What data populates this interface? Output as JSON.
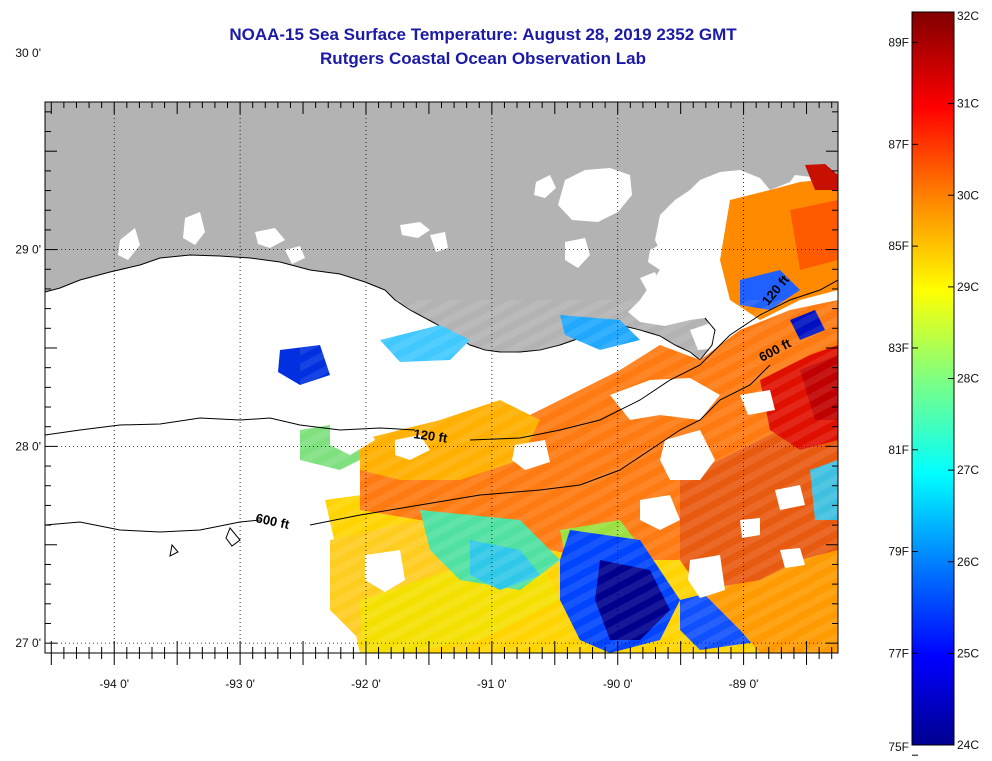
{
  "title": "NOAA-15 Sea Surface Temperature:  August 28, 2019 2352 GMT",
  "subtitle": "Rutgers Coastal Ocean Observation Lab",
  "colors": {
    "land": "#b3b3b3",
    "cloud": "#ffffff",
    "title": "#1a1aa6",
    "colorbar": [
      "#00008f",
      "#0000ff",
      "#0080ff",
      "#00ffff",
      "#80ff80",
      "#ffff00",
      "#ff8000",
      "#ff0000",
      "#800000"
    ]
  },
  "map": {
    "lon_range": [
      -94.55,
      -88.25
    ],
    "lat_range": [
      26.95,
      29.75
    ],
    "lon_ticks": [
      {
        "value": -94,
        "label": "-94 0'"
      },
      {
        "value": -93,
        "label": "-93 0'"
      },
      {
        "value": -92,
        "label": "-92 0'"
      },
      {
        "value": -91,
        "label": "-91 0'"
      },
      {
        "value": -90,
        "label": "-90 0'"
      },
      {
        "value": -89,
        "label": "-89 0'"
      }
    ],
    "lat_ticks": [
      {
        "value": 30,
        "label": "30 0'"
      },
      {
        "value": 29,
        "label": "29 0'"
      },
      {
        "value": 28,
        "label": "28 0'"
      },
      {
        "value": 27,
        "label": "27 0'"
      }
    ],
    "contours": [
      {
        "label": "120 ft"
      },
      {
        "label": "600 ft"
      },
      {
        "label": "120 ft"
      },
      {
        "label": "600 ft"
      }
    ]
  },
  "colorbar": {
    "fahrenheit_labels": [
      "89F",
      "87F",
      "85F",
      "83F",
      "81F",
      "79F",
      "77F",
      "75F"
    ],
    "celsius_labels": [
      "32C",
      "31C",
      "30C",
      "29C",
      "28C",
      "27C",
      "26C",
      "25C",
      "24C"
    ]
  }
}
